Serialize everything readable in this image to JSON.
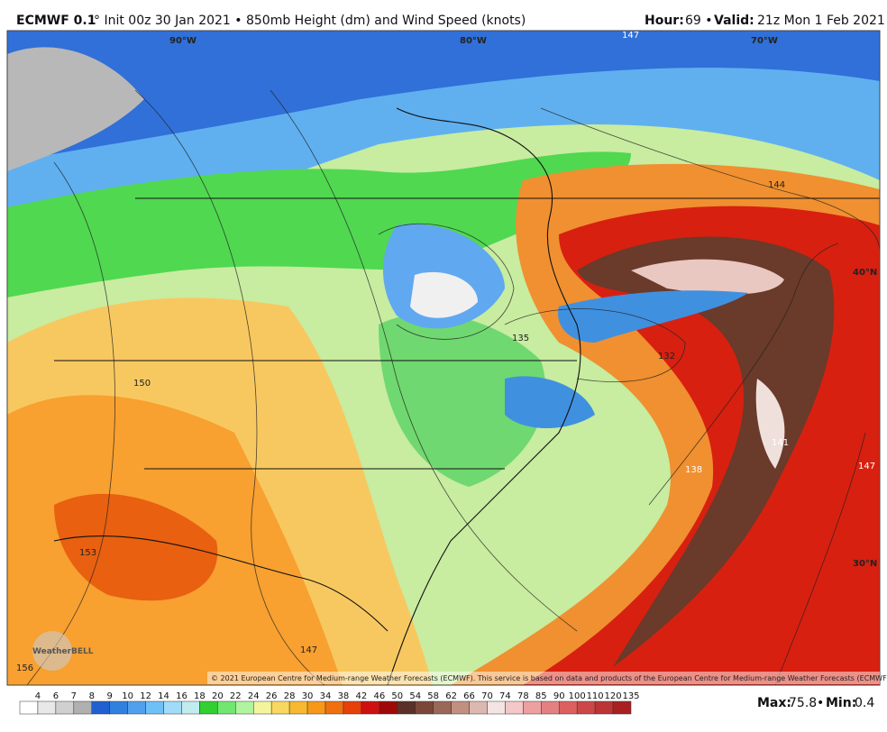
{
  "header": {
    "model": "ECMWF 0.1",
    "title_rest": "° Init 00z 30 Jan 2021 • 850mb Height (dm) and Wind Speed (knots)",
    "hour_label": "Hour:",
    "hour": "69 •",
    "valid_label": "Valid:",
    "valid": "21z Mon 1 Feb 2021"
  },
  "map": {
    "longitudes": [
      "90°W",
      "80°W",
      "70°W"
    ],
    "latitudes": [
      "40°N",
      "30°N"
    ],
    "contour_labels": [
      "147",
      "144",
      "132",
      "135",
      "150",
      "141",
      "138",
      "147",
      "153",
      "147",
      "156"
    ],
    "logo": "WeatherBELL",
    "copyright": "© 2021 European Centre for Medium-range Weather Forecasts (ECMWF). This service is based on data and products of the European Centre for Medium-range Weather Forecasts (ECMWF)."
  },
  "colorbar": {
    "labels": [
      "4",
      "6",
      "7",
      "8",
      "9",
      "10",
      "12",
      "14",
      "16",
      "18",
      "20",
      "22",
      "24",
      "26",
      "28",
      "30",
      "34",
      "38",
      "42",
      "46",
      "50",
      "54",
      "58",
      "62",
      "66",
      "70",
      "74",
      "78",
      "85",
      "90",
      "100",
      "110",
      "120",
      "135"
    ],
    "colors": [
      "#ffffff",
      "#e8e8e8",
      "#d0d0d0",
      "#b0b0b0",
      "#2060d0",
      "#3080e0",
      "#50a0f0",
      "#70c0f8",
      "#a0dcf8",
      "#c0ecf0",
      "#30d030",
      "#70e870",
      "#b0f4a0",
      "#f4f49c",
      "#f8d860",
      "#f8b830",
      "#f89818",
      "#f07010",
      "#e84008",
      "#d01010",
      "#a00808",
      "#5a3028",
      "#7a4838",
      "#9a6858",
      "#c09080",
      "#dcb8b0",
      "#f4e4e4",
      "#f4c8c8",
      "#eca0a0",
      "#e48080",
      "#dc6060",
      "#cc4848",
      "#bc3434",
      "#a82020"
    ]
  },
  "footer": {
    "max_label": "Max:",
    "max": "75.8",
    "sep": "•",
    "min_label": "Min:",
    "min": "0.4"
  }
}
